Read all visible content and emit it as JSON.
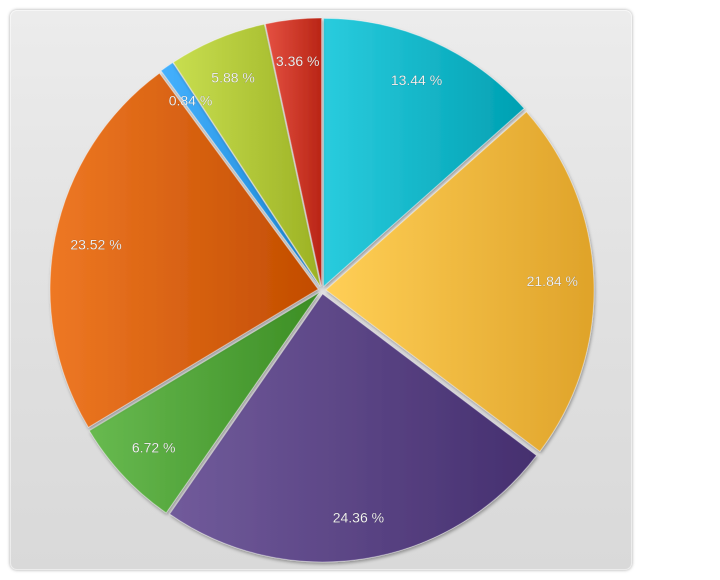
{
  "chart_data": {
    "type": "pie",
    "start_angle_deg": 0,
    "direction": "clockwise",
    "legend": "none",
    "slices": [
      {
        "label": "13.44 %",
        "value": 13.44,
        "color": "#14b6c8"
      },
      {
        "label": "21.84 %",
        "value": 21.84,
        "color": "#f5b940"
      },
      {
        "label": "24.36 %",
        "value": 24.36,
        "color": "#5b4585"
      },
      {
        "label": "6.72 %",
        "value": 6.72,
        "color": "#52a43a"
      },
      {
        "label": "23.52 %",
        "value": 23.52,
        "color": "#d8620e"
      },
      {
        "label": "0.84 %",
        "value": 0.84,
        "color": "#2f9be8"
      },
      {
        "label": "5.88 %",
        "value": 5.88,
        "color": "#b2c83a"
      },
      {
        "label": "3.36 %",
        "value": 3.36,
        "color": "#cf3b2c"
      }
    ]
  }
}
